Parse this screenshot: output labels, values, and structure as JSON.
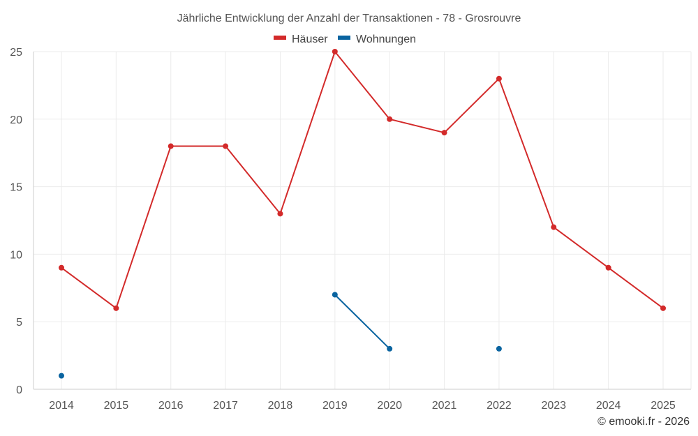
{
  "chart_data": {
    "type": "line",
    "title": "Jährliche Entwicklung der Anzahl der Transaktionen - 78 - Grosrouvre",
    "categories": [
      "2014",
      "2015",
      "2016",
      "2017",
      "2018",
      "2019",
      "2020",
      "2021",
      "2022",
      "2023",
      "2024",
      "2025"
    ],
    "series": [
      {
        "name": "Häuser",
        "color": "#d32a2a",
        "values": [
          9,
          6,
          18,
          18,
          13,
          25,
          20,
          19,
          23,
          12,
          9,
          6
        ]
      },
      {
        "name": "Wohnungen",
        "color": "#0a64a0",
        "values": [
          1,
          null,
          null,
          null,
          null,
          7,
          3,
          null,
          3,
          null,
          null,
          null
        ]
      }
    ],
    "ylim": [
      0,
      25
    ],
    "yticks": [
      0,
      5,
      10,
      15,
      20,
      25
    ],
    "xlabel": "",
    "ylabel": "",
    "grid": true,
    "legend": "top-center"
  },
  "credit": "© emooki.fr - 2026",
  "colors": {
    "grid": "#ebebeb",
    "axis": "#cccccc",
    "text": "#555555"
  }
}
